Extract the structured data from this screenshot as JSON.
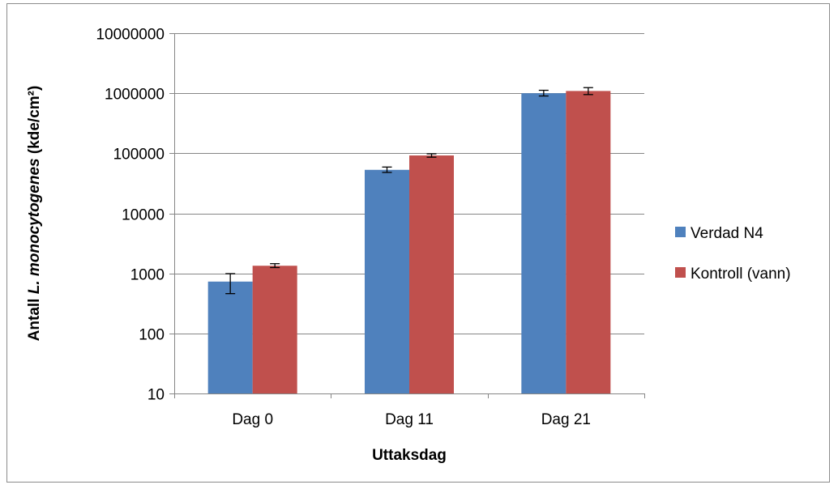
{
  "chart_data": {
    "type": "bar",
    "scale": "log",
    "title": "",
    "xlabel": "Uttaksdag",
    "ylabel_plain": "Antall ",
    "ylabel_italic": "L. monocytogenes",
    "ylabel_suffix": " (kde/cm²)",
    "ylim": [
      10,
      10000000
    ],
    "y_ticks": [
      10,
      100,
      1000,
      10000,
      100000,
      1000000,
      10000000
    ],
    "y_tick_labels": [
      "10",
      "100",
      "1000",
      "10000",
      "100000",
      "1000000",
      "10000000"
    ],
    "grid": true,
    "legend_position": "right",
    "categories": [
      "Dag 0",
      "Dag 11",
      "Dag 21"
    ],
    "series": [
      {
        "name": "Verdad N4",
        "color": "#4F81BD",
        "values": [
          730,
          53000,
          1000000
        ],
        "error_low": [
          460,
          48000,
          900000
        ],
        "error_high": [
          990,
          59000,
          1120000
        ]
      },
      {
        "name": "Kontroll (vann)",
        "color": "#C0504D",
        "values": [
          1340,
          92000,
          1090000
        ],
        "error_low": [
          1250,
          86000,
          950000
        ],
        "error_high": [
          1450,
          98000,
          1240000
        ]
      }
    ]
  }
}
